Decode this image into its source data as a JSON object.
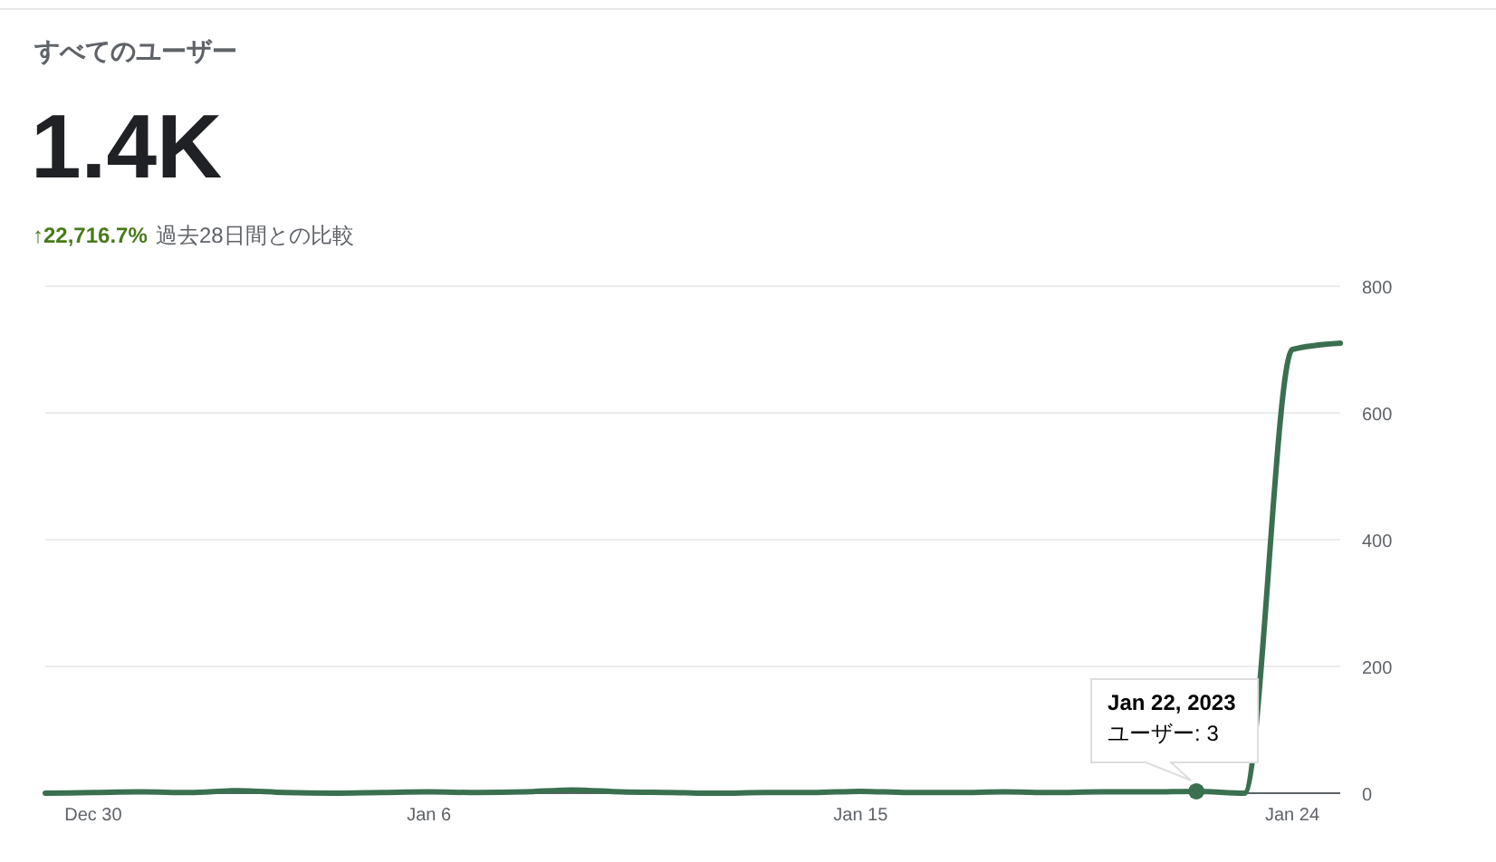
{
  "chart_data": {
    "type": "line",
    "title": "すべてのユーザー",
    "subtitle": "1.4K",
    "annotations": [
      "↑22,716.7%",
      "過去28日間との比較",
      {
        "text": "Jan 22, 2023\nユーザー: 3",
        "x": "2023-01-22",
        "y": 3
      }
    ],
    "x": [
      "2022-12-29",
      "2022-12-30",
      "2022-12-31",
      "2023-01-01",
      "2023-01-02",
      "2023-01-03",
      "2023-01-04",
      "2023-01-05",
      "2023-01-06",
      "2023-01-07",
      "2023-01-08",
      "2023-01-09",
      "2023-01-10",
      "2023-01-11",
      "2023-01-12",
      "2023-01-13",
      "2023-01-14",
      "2023-01-15",
      "2023-01-16",
      "2023-01-17",
      "2023-01-18",
      "2023-01-19",
      "2023-01-20",
      "2023-01-21",
      "2023-01-22",
      "2023-01-23",
      "2023-01-24",
      "2023-01-25"
    ],
    "series": [
      {
        "color": "#3a7050",
        "values": [
          0,
          1,
          2,
          1,
          4,
          1,
          0,
          1,
          2,
          1,
          2,
          5,
          2,
          1,
          0,
          1,
          1,
          3,
          1,
          1,
          2,
          1,
          2,
          2,
          3,
          0,
          700,
          710
        ]
      }
    ],
    "xlim": [
      "2022-12-29",
      "2023-01-25"
    ],
    "xticks": [
      {
        "value": "2022-12-30",
        "label": "Dec 30"
      },
      {
        "value": "2023-01-06",
        "label": "Jan 6"
      },
      {
        "value": "2023-01-15",
        "label": "Jan 15"
      },
      {
        "value": "2023-01-24",
        "label": "Jan 24"
      }
    ],
    "ylim": [
      0,
      800
    ],
    "yticks": [
      0,
      200,
      400,
      600,
      800
    ],
    "grid": "y",
    "marker": "none",
    "line_style": "solid"
  }
}
